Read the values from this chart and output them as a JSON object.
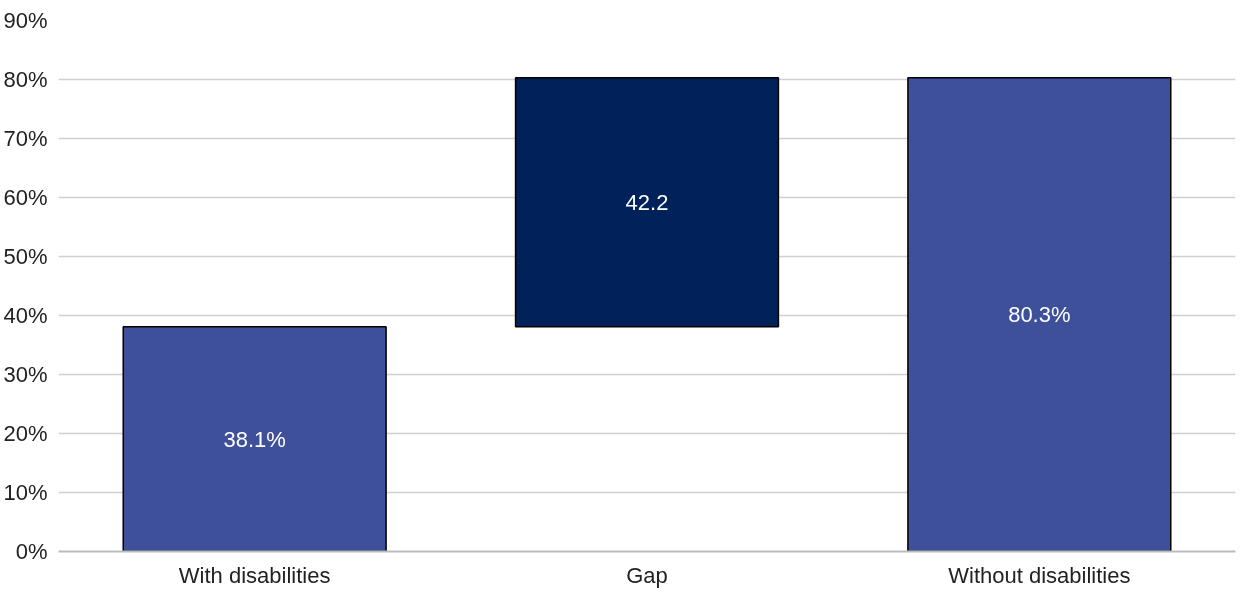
{
  "chart_data": {
    "type": "bar",
    "categories": [
      "With disabilities",
      "Gap",
      "Without disabilities"
    ],
    "values": [
      38.1,
      42.2,
      80.3
    ],
    "base": [
      0,
      38.1,
      0
    ],
    "colors": [
      "#3f509b",
      "#00215a",
      "#3f509b"
    ],
    "value_labels": [
      "38.1%",
      "42.2",
      "80.3%"
    ],
    "ylim": [
      0,
      90
    ],
    "yticks": [
      {
        "value": 0,
        "label": "0%"
      },
      {
        "value": 10,
        "label": "10%"
      },
      {
        "value": 20,
        "label": "20%"
      },
      {
        "value": 30,
        "label": "30%"
      },
      {
        "value": 40,
        "label": "40%"
      },
      {
        "value": 50,
        "label": "50%"
      },
      {
        "value": 60,
        "label": "60%"
      },
      {
        "value": 70,
        "label": "70%"
      },
      {
        "value": 80,
        "label": "80%"
      },
      {
        "value": 90,
        "label": "90%"
      }
    ],
    "grid": "y"
  }
}
